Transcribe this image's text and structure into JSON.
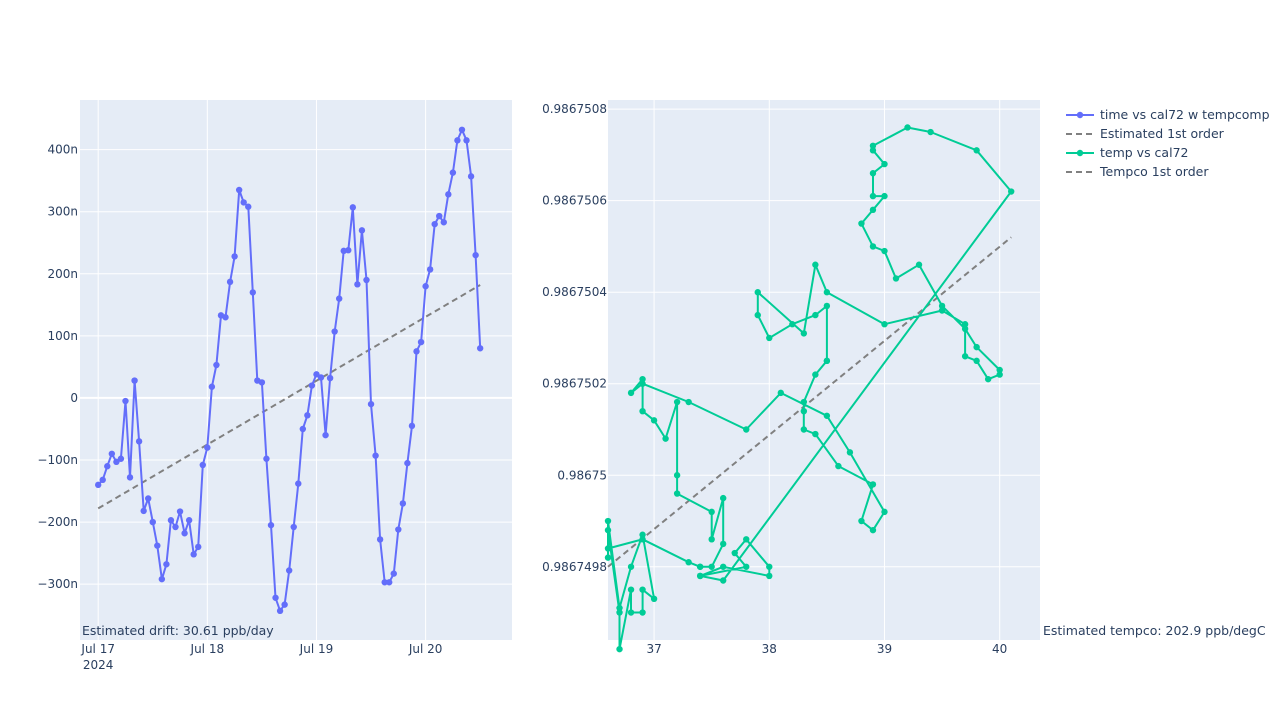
{
  "colors": {
    "plot_bg": "#e5ecf6",
    "grid": "#ffffff",
    "series_time": "#636efa",
    "series_temp": "#00cc96",
    "fit": "#808080",
    "text": "#2a3f5f"
  },
  "legend": {
    "position": "top-right",
    "items": [
      {
        "label": "time vs cal72 w tempcomp",
        "style": "line-marker",
        "color": "#636efa"
      },
      {
        "label": "Estimated 1st order",
        "style": "dash",
        "color": "#808080"
      },
      {
        "label": "temp vs cal72",
        "style": "line-marker",
        "color": "#00cc96"
      },
      {
        "label": "Tempco 1st order",
        "style": "dash",
        "color": "#808080"
      }
    ]
  },
  "chart_data": [
    {
      "type": "line",
      "x_axis_type": "date",
      "xlim": [
        "2024-07-16 20:00",
        "2024-07-20 19:00"
      ],
      "ylim": [
        -390,
        480
      ],
      "x_ticks": [
        {
          "value": "2024-07-17 00:00",
          "label": "Jul 17",
          "sublabel": "2024"
        },
        {
          "value": "2024-07-18 00:00",
          "label": "Jul 18"
        },
        {
          "value": "2024-07-19 00:00",
          "label": "Jul 19"
        },
        {
          "value": "2024-07-20 00:00",
          "label": "Jul 20"
        }
      ],
      "y_ticks": [
        {
          "value": 400,
          "label": "400n"
        },
        {
          "value": 300,
          "label": "300n"
        },
        {
          "value": 200,
          "label": "200n"
        },
        {
          "value": 100,
          "label": "100n"
        },
        {
          "value": 0,
          "label": "0"
        },
        {
          "value": -100,
          "label": "−100n"
        },
        {
          "value": -200,
          "label": "−200n"
        },
        {
          "value": -300,
          "label": "−300n"
        }
      ],
      "annotation": "Estimated drift:  30.61 ppb/day",
      "series": [
        {
          "name": "time vs cal72 w tempcomp",
          "mode": "lines+markers",
          "x": [
            "2024-07-17 00:00",
            "2024-07-17 01:00",
            "2024-07-17 02:00",
            "2024-07-17 03:00",
            "2024-07-17 04:00",
            "2024-07-17 05:00",
            "2024-07-17 06:00",
            "2024-07-17 07:00",
            "2024-07-17 08:00",
            "2024-07-17 09:00",
            "2024-07-17 10:00",
            "2024-07-17 11:00",
            "2024-07-17 12:00",
            "2024-07-17 13:00",
            "2024-07-17 14:00",
            "2024-07-17 15:00",
            "2024-07-17 16:00",
            "2024-07-17 17:00",
            "2024-07-17 18:00",
            "2024-07-17 19:00",
            "2024-07-17 20:00",
            "2024-07-17 21:00",
            "2024-07-17 22:00",
            "2024-07-17 23:00",
            "2024-07-18 00:00",
            "2024-07-18 01:00",
            "2024-07-18 02:00",
            "2024-07-18 03:00",
            "2024-07-18 04:00",
            "2024-07-18 05:00",
            "2024-07-18 06:00",
            "2024-07-18 07:00",
            "2024-07-18 08:00",
            "2024-07-18 09:00",
            "2024-07-18 10:00",
            "2024-07-18 11:00",
            "2024-07-18 12:00",
            "2024-07-18 13:00",
            "2024-07-18 14:00",
            "2024-07-18 15:00",
            "2024-07-18 16:00",
            "2024-07-18 17:00",
            "2024-07-18 18:00",
            "2024-07-18 19:00",
            "2024-07-18 20:00",
            "2024-07-18 21:00",
            "2024-07-18 22:00",
            "2024-07-18 23:00",
            "2024-07-19 00:00",
            "2024-07-19 01:00",
            "2024-07-19 02:00",
            "2024-07-19 03:00",
            "2024-07-19 04:00",
            "2024-07-19 05:00",
            "2024-07-19 06:00",
            "2024-07-19 07:00",
            "2024-07-19 08:00",
            "2024-07-19 09:00",
            "2024-07-19 10:00",
            "2024-07-19 11:00",
            "2024-07-19 12:00",
            "2024-07-19 13:00",
            "2024-07-19 14:00",
            "2024-07-19 15:00",
            "2024-07-19 16:00",
            "2024-07-19 17:00",
            "2024-07-19 18:00",
            "2024-07-19 19:00",
            "2024-07-19 20:00",
            "2024-07-19 21:00",
            "2024-07-19 22:00",
            "2024-07-19 23:00",
            "2024-07-20 00:00",
            "2024-07-20 01:00",
            "2024-07-20 02:00",
            "2024-07-20 03:00",
            "2024-07-20 04:00",
            "2024-07-20 05:00",
            "2024-07-20 06:00",
            "2024-07-20 07:00",
            "2024-07-20 08:00",
            "2024-07-20 09:00",
            "2024-07-20 10:00",
            "2024-07-20 11:00",
            "2024-07-20 12:00"
          ],
          "y": [
            -140,
            -132,
            -110,
            -90,
            -103,
            -98,
            -5,
            -128,
            28,
            -70,
            -182,
            -162,
            -200,
            -238,
            -292,
            -268,
            -197,
            -208,
            -183,
            -218,
            -197,
            -252,
            -240,
            -108,
            -80,
            18,
            53,
            133,
            130,
            187,
            228,
            335,
            315,
            308,
            170,
            28,
            25,
            -98,
            -205,
            -322,
            -343,
            -333,
            -278,
            -208,
            -138,
            -50,
            -28,
            20,
            38,
            33,
            -60,
            32,
            107,
            160,
            237,
            238,
            307,
            183,
            270,
            190,
            -10,
            -93,
            -228,
            -297,
            -297,
            -283,
            -212,
            -170,
            -105,
            -45,
            75,
            90,
            180,
            207,
            280,
            293,
            283,
            328,
            363,
            415,
            432,
            415,
            357,
            230,
            80
          ]
        },
        {
          "name": "Estimated 1st order",
          "mode": "dash",
          "x": [
            "2024-07-17 00:00",
            "2024-07-20 12:00"
          ],
          "y": [
            -178,
            182
          ]
        }
      ]
    },
    {
      "type": "scatter",
      "xlim": [
        36.6,
        40.35
      ],
      "ylim": [
        0.98674964,
        0.98675082
      ],
      "x_ticks": [
        {
          "value": 37,
          "label": "37"
        },
        {
          "value": 38,
          "label": "38"
        },
        {
          "value": 39,
          "label": "39"
        },
        {
          "value": 40,
          "label": "40"
        }
      ],
      "y_ticks": [
        {
          "value": 0.9867498,
          "label": "0.9867498"
        },
        {
          "value": 0.98675,
          "label": "0.98675"
        },
        {
          "value": 0.9867502,
          "label": "0.9867502"
        },
        {
          "value": 0.9867504,
          "label": "0.9867504"
        },
        {
          "value": 0.9867506,
          "label": "0.9867506"
        },
        {
          "value": 0.9867508,
          "label": "0.9867508"
        }
      ],
      "annotation": "Estimated tempco:  202.9 ppb/degC",
      "series": [
        {
          "name": "temp vs cal72",
          "mode": "lines+markers",
          "x": [
            36.6,
            36.6,
            36.7,
            36.7,
            36.8,
            36.8,
            36.9,
            36.9,
            37.0,
            36.9,
            36.8,
            36.7,
            36.6,
            36.6,
            36.9,
            37.3,
            37.4,
            37.4,
            37.5,
            37.6,
            37.6,
            37.5,
            37.5,
            37.2,
            37.2,
            37.2,
            37.1,
            37.0,
            36.9,
            36.9,
            36.8,
            36.9,
            37.3,
            37.8,
            38.1,
            38.5,
            38.7,
            39.0,
            38.9,
            38.8,
            38.9,
            38.6,
            38.4,
            38.3,
            38.3,
            38.3,
            38.4,
            38.5,
            38.5,
            38.5,
            38.4,
            38.2,
            38.0,
            37.9,
            37.9,
            38.3,
            38.4,
            38.5,
            39.0,
            39.5,
            39.7,
            39.7,
            39.8,
            39.9,
            40.0,
            40.0,
            39.8,
            39.7,
            39.5,
            39.3,
            39.1,
            39.0,
            38.9,
            38.8,
            38.9,
            39.0,
            38.9,
            38.9,
            39.0,
            38.9,
            38.9,
            39.2,
            39.4,
            39.8,
            40.1,
            37.6,
            37.4,
            37.8,
            37.7,
            37.8,
            38.0,
            38.0,
            37.6,
            37.4
          ],
          "y": [
            0.98674982,
            0.98674988,
            0.9867497,
            0.98674962,
            0.98674975,
            0.9867497,
            0.9867497,
            0.98674975,
            0.98674973,
            0.98674987,
            0.9867498,
            0.98674971,
            0.9867499,
            0.98674984,
            0.98674986,
            0.98674981,
            0.9867498,
            0.9867498,
            0.9867498,
            0.98674985,
            0.98674995,
            0.98674986,
            0.98674992,
            0.98674996,
            0.98675,
            0.98675016,
            0.98675008,
            0.98675012,
            0.98675014,
            0.98675021,
            0.98675018,
            0.9867502,
            0.98675016,
            0.9867501,
            0.98675018,
            0.98675013,
            0.98675005,
            0.98674992,
            0.98674988,
            0.9867499,
            0.98674998,
            0.98675002,
            0.98675009,
            0.9867501,
            0.98675014,
            0.98675016,
            0.98675022,
            0.98675025,
            0.98675025,
            0.98675037,
            0.98675035,
            0.98675033,
            0.9867503,
            0.98675035,
            0.9867504,
            0.98675031,
            0.98675046,
            0.9867504,
            0.98675033,
            0.98675036,
            0.98675033,
            0.98675026,
            0.98675025,
            0.98675021,
            0.98675022,
            0.98675023,
            0.98675028,
            0.98675032,
            0.98675037,
            0.98675046,
            0.98675043,
            0.98675049,
            0.9867505,
            0.98675055,
            0.98675058,
            0.98675061,
            0.98675061,
            0.98675066,
            0.98675068,
            0.98675071,
            0.98675072,
            0.98675076,
            0.98675075,
            0.98675071,
            0.98675062,
            0.98674977,
            0.98674978,
            0.9867498,
            0.98674983,
            0.98674986,
            0.9867498,
            0.98674978,
            0.9867498,
            0.98674978
          ]
        },
        {
          "name": "Tempco 1st order",
          "mode": "dash",
          "x": [
            36.6,
            40.1
          ],
          "y": [
            0.9867498,
            0.98675052
          ]
        }
      ]
    }
  ]
}
